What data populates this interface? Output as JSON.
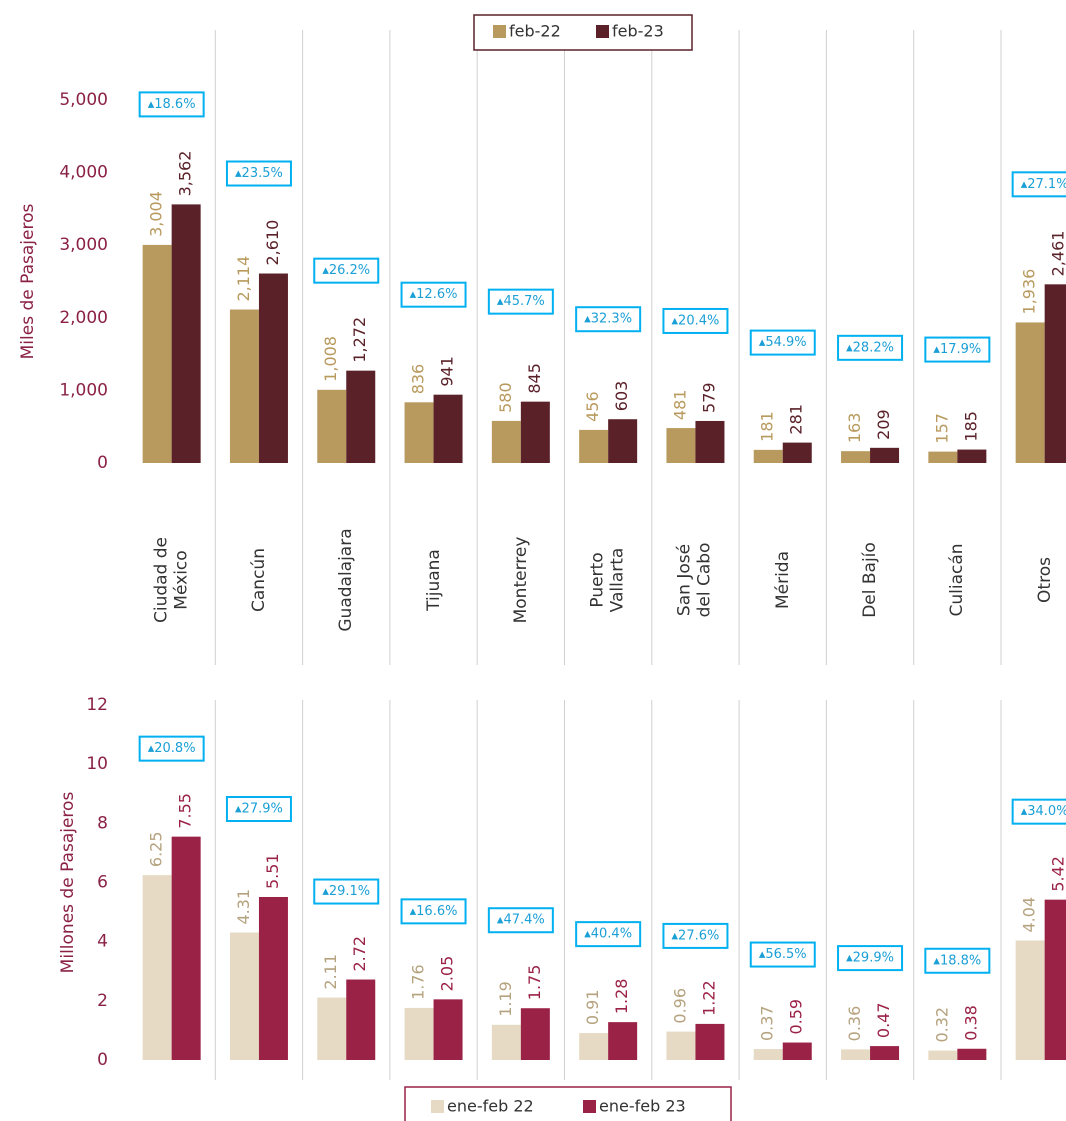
{
  "chart_data": [
    {
      "type": "bar",
      "y_label": "Miles de Pasajeros",
      "categories": [
        "Ciudad de\nMéxico",
        "Cancún",
        "Guadalajara",
        "Tijuana",
        "Monterrey",
        "Puerto\nVallarta",
        "San José\ndel Cabo",
        "Mérida",
        "Del Bajío",
        "Culiacán",
        "Otros"
      ],
      "series": [
        {
          "name": "feb-22",
          "color": "#b89a5e",
          "values": [
            3004,
            2114,
            1008,
            836,
            580,
            456,
            481,
            181,
            163,
            157,
            1936
          ],
          "value_labels": [
            "3,004",
            "2,114",
            "1,008",
            "836",
            "580",
            "456",
            "481",
            "181",
            "163",
            "157",
            "1,936"
          ]
        },
        {
          "name": "feb-23",
          "color": "#5a2129",
          "values": [
            3562,
            2610,
            1272,
            941,
            845,
            603,
            579,
            281,
            209,
            185,
            2461
          ],
          "value_labels": [
            "3,562",
            "2,610",
            "1,272",
            "941",
            "845",
            "603",
            "579",
            "281",
            "209",
            "185",
            "2,461"
          ]
        }
      ],
      "annotations": [
        "▴18.6%",
        "▴23.5%",
        "▴26.2%",
        "▴12.6%",
        "▴45.7%",
        "▴32.3%",
        "▴20.4%",
        "▴54.9%",
        "▴28.2%",
        "▴17.9%",
        "▴27.1%"
      ],
      "ylim": [
        0,
        5000
      ],
      "yticks": [
        0,
        {
          "value": 1000,
          "label": "1,000"
        },
        {
          "value": 2000,
          "label": "2,000"
        },
        {
          "value": 3000,
          "label": "3,000"
        },
        {
          "value": 4000,
          "label": "4,000"
        },
        {
          "value": 5000,
          "label": "5,000"
        }
      ],
      "legend": "top"
    },
    {
      "type": "bar",
      "y_label": "Millones de Pasajeros",
      "series": [
        {
          "name": "ene-feb 22",
          "color": "#e6dac4",
          "values": [
            6.25,
            4.31,
            2.11,
            1.76,
            1.19,
            0.91,
            0.96,
            0.37,
            0.36,
            0.32,
            4.04
          ]
        },
        {
          "name": "ene-feb 23",
          "color": "#9b2247",
          "values": [
            7.55,
            5.51,
            2.72,
            2.05,
            1.75,
            1.28,
            1.22,
            0.59,
            0.47,
            0.38,
            5.42
          ]
        }
      ],
      "annotations": [
        "▴20.8%",
        "▴27.9%",
        "▴29.1%",
        "▴16.6%",
        "▴47.4%",
        "▴40.4%",
        "▴27.6%",
        "▴56.5%",
        "▴29.9%",
        "▴18.8%",
        "▴34.0%"
      ],
      "ylim": [
        0,
        12
      ],
      "yticks": [
        0,
        2,
        4,
        6,
        8,
        10,
        12
      ],
      "legend": "bottom"
    }
  ]
}
